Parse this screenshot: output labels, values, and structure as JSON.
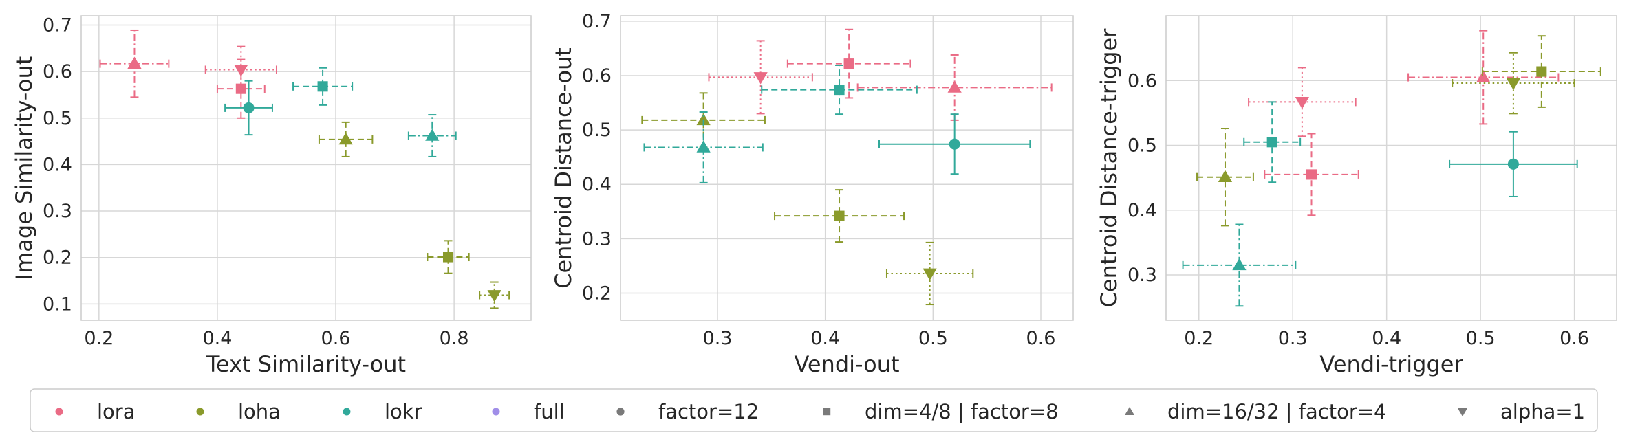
{
  "colors": {
    "lora": "#ea6b85",
    "loha": "#8a9a2b",
    "lokr": "#31a99a",
    "full": "#a08ee8",
    "shape": "#7a7a7a",
    "grid": "#d7d7d7",
    "frame": "#cccccc"
  },
  "legend": {
    "items": [
      {
        "label": "lora",
        "kind": "color",
        "color": "#ea6b85"
      },
      {
        "label": "loha",
        "kind": "color",
        "color": "#8a9a2b"
      },
      {
        "label": "lokr",
        "kind": "color",
        "color": "#31a99a"
      },
      {
        "label": "full",
        "kind": "color",
        "color": "#a08ee8"
      },
      {
        "label": "factor=12",
        "kind": "marker",
        "marker": "circle"
      },
      {
        "label": "dim=4/8 | factor=8",
        "kind": "marker",
        "marker": "square"
      },
      {
        "label": "dim=16/32 | factor=4",
        "kind": "marker",
        "marker": "triangle-up"
      },
      {
        "label": "alpha=1",
        "kind": "marker",
        "marker": "triangle-down"
      }
    ]
  },
  "chart_data": [
    {
      "type": "scatter",
      "xlabel": "Text Similarity-out",
      "ylabel": "Image Similarity-out",
      "xlim": [
        0.17,
        0.93
      ],
      "ylim": [
        0.065,
        0.72
      ],
      "xticks": [
        0.2,
        0.4,
        0.6,
        0.8
      ],
      "yticks": [
        0.1,
        0.2,
        0.3,
        0.4,
        0.5,
        0.6,
        0.7
      ],
      "tick_decimals": 1,
      "grid": true,
      "points": [
        {
          "series": "lora",
          "marker": "triangle-up",
          "x": 0.26,
          "y": 0.617,
          "xerr": 0.058,
          "yerr": 0.072,
          "line": "dashdot"
        },
        {
          "series": "lora",
          "marker": "triangle-down",
          "x": 0.44,
          "y": 0.604,
          "xerr": 0.06,
          "yerr": 0.05,
          "line": "dotted"
        },
        {
          "series": "lora",
          "marker": "square",
          "x": 0.44,
          "y": 0.563,
          "xerr": 0.04,
          "yerr": 0.063,
          "line": "dashed"
        },
        {
          "series": "lokr",
          "marker": "circle",
          "x": 0.453,
          "y": 0.522,
          "xerr": 0.04,
          "yerr": 0.058,
          "line": "solid"
        },
        {
          "series": "lokr",
          "marker": "square",
          "x": 0.578,
          "y": 0.568,
          "xerr": 0.05,
          "yerr": 0.04,
          "line": "dashed"
        },
        {
          "series": "loha",
          "marker": "triangle-up",
          "x": 0.617,
          "y": 0.454,
          "xerr": 0.045,
          "yerr": 0.037,
          "line": "dashed"
        },
        {
          "series": "lokr",
          "marker": "triangle-up",
          "x": 0.763,
          "y": 0.462,
          "xerr": 0.04,
          "yerr": 0.045,
          "line": "dashdot"
        },
        {
          "series": "loha",
          "marker": "square",
          "x": 0.79,
          "y": 0.201,
          "xerr": 0.035,
          "yerr": 0.035,
          "line": "dashed"
        },
        {
          "series": "loha",
          "marker": "triangle-down",
          "x": 0.868,
          "y": 0.119,
          "xerr": 0.025,
          "yerr": 0.028,
          "line": "dotted"
        }
      ]
    },
    {
      "type": "scatter",
      "xlabel": "Vendi-out",
      "ylabel": "Centroid Distance-out",
      "xlim": [
        0.21,
        0.63
      ],
      "ylim": [
        0.15,
        0.71
      ],
      "xticks": [
        0.3,
        0.4,
        0.5,
        0.6
      ],
      "yticks": [
        0.2,
        0.3,
        0.4,
        0.5,
        0.6,
        0.7
      ],
      "tick_decimals": 1,
      "grid": true,
      "points": [
        {
          "series": "lora",
          "marker": "square",
          "x": 0.422,
          "y": 0.622,
          "xerr": 0.057,
          "yerr": 0.063,
          "line": "dashed"
        },
        {
          "series": "lora",
          "marker": "triangle-down",
          "x": 0.34,
          "y": 0.597,
          "xerr": 0.048,
          "yerr": 0.067,
          "line": "dotted"
        },
        {
          "series": "lora",
          "marker": "triangle-up",
          "x": 0.52,
          "y": 0.578,
          "xerr": 0.09,
          "yerr": 0.06,
          "line": "dashdot"
        },
        {
          "series": "lokr",
          "marker": "square",
          "x": 0.413,
          "y": 0.574,
          "xerr": 0.072,
          "yerr": 0.045,
          "line": "dashed"
        },
        {
          "series": "loha",
          "marker": "triangle-up",
          "x": 0.287,
          "y": 0.518,
          "xerr": 0.057,
          "yerr": 0.05,
          "line": "dashed"
        },
        {
          "series": "lokr",
          "marker": "triangle-up",
          "x": 0.287,
          "y": 0.468,
          "xerr": 0.055,
          "yerr": 0.065,
          "line": "dashdot"
        },
        {
          "series": "lokr",
          "marker": "circle",
          "x": 0.52,
          "y": 0.474,
          "xerr": 0.07,
          "yerr": 0.055,
          "line": "solid"
        },
        {
          "series": "loha",
          "marker": "square",
          "x": 0.413,
          "y": 0.342,
          "xerr": 0.06,
          "yerr": 0.048,
          "line": "dashed"
        },
        {
          "series": "loha",
          "marker": "triangle-down",
          "x": 0.497,
          "y": 0.236,
          "xerr": 0.04,
          "yerr": 0.057,
          "line": "dotted"
        }
      ]
    },
    {
      "type": "scatter",
      "xlabel": "Vendi-trigger",
      "ylabel": "Centroid Distance-trigger",
      "xlim": [
        0.165,
        0.645
      ],
      "ylim": [
        0.23,
        0.7
      ],
      "xticks": [
        0.2,
        0.3,
        0.4,
        0.5,
        0.6
      ],
      "yticks": [
        0.3,
        0.4,
        0.5,
        0.6
      ],
      "tick_decimals": 1,
      "grid": true,
      "points": [
        {
          "series": "lora",
          "marker": "triangle-up",
          "x": 0.503,
          "y": 0.605,
          "xerr": 0.08,
          "yerr": 0.072,
          "line": "dashdot"
        },
        {
          "series": "loha",
          "marker": "square",
          "x": 0.565,
          "y": 0.614,
          "xerr": 0.063,
          "yerr": 0.055,
          "line": "dashed"
        },
        {
          "series": "loha",
          "marker": "triangle-down",
          "x": 0.535,
          "y": 0.596,
          "xerr": 0.065,
          "yerr": 0.047,
          "line": "dotted"
        },
        {
          "series": "lora",
          "marker": "triangle-down",
          "x": 0.31,
          "y": 0.567,
          "xerr": 0.057,
          "yerr": 0.053,
          "line": "dotted"
        },
        {
          "series": "lokr",
          "marker": "square",
          "x": 0.278,
          "y": 0.505,
          "xerr": 0.03,
          "yerr": 0.062,
          "line": "dashed"
        },
        {
          "series": "lokr",
          "marker": "circle",
          "x": 0.535,
          "y": 0.471,
          "xerr": 0.068,
          "yerr": 0.05,
          "line": "solid"
        },
        {
          "series": "loha",
          "marker": "triangle-up",
          "x": 0.228,
          "y": 0.451,
          "xerr": 0.03,
          "yerr": 0.075,
          "line": "dashed"
        },
        {
          "series": "lora",
          "marker": "square",
          "x": 0.32,
          "y": 0.455,
          "xerr": 0.05,
          "yerr": 0.063,
          "line": "dashed"
        },
        {
          "series": "lokr",
          "marker": "triangle-up",
          "x": 0.243,
          "y": 0.315,
          "xerr": 0.06,
          "yerr": 0.063,
          "line": "dashdot"
        }
      ]
    }
  ]
}
